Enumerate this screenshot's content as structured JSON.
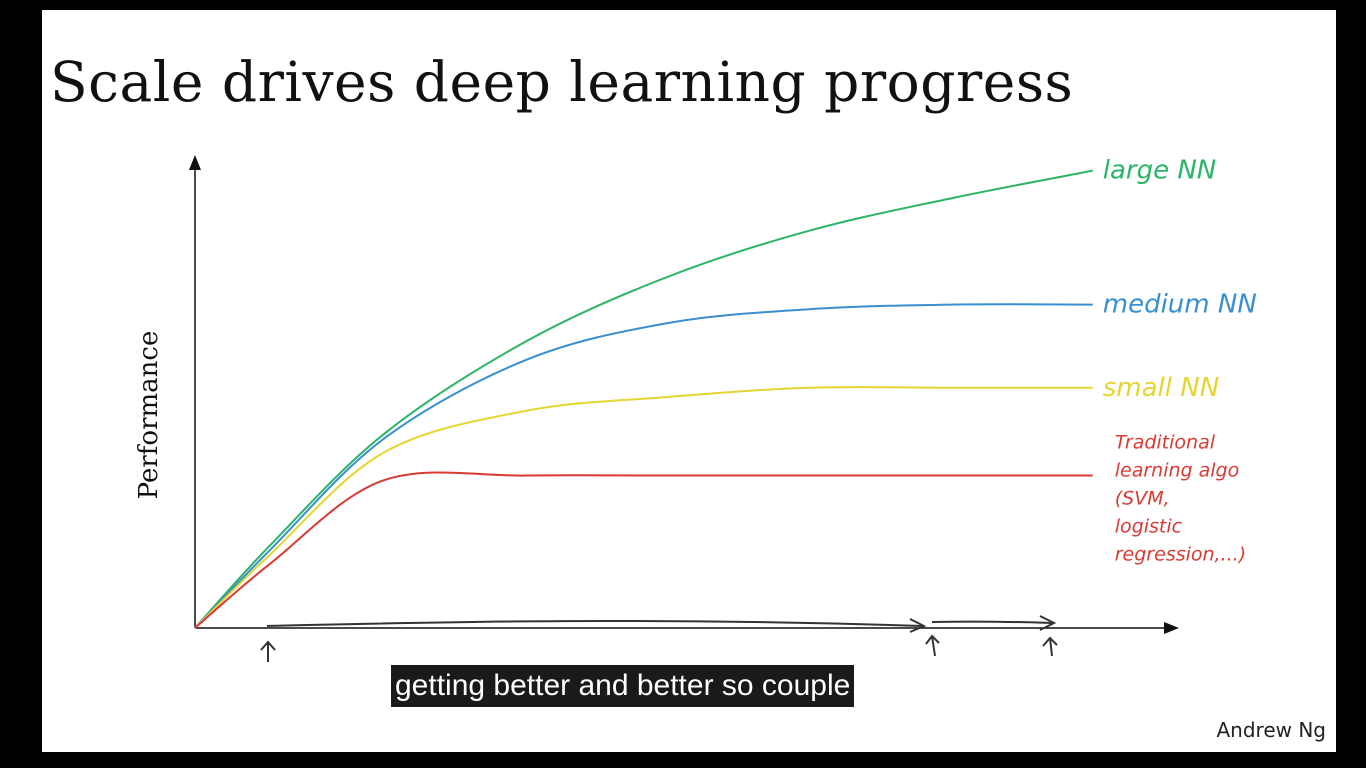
{
  "slide": {
    "title": "Scale drives deep learning progress",
    "credit": "Andrew Ng"
  },
  "subtitle": {
    "text": "getting better and better so couple"
  },
  "chart_data": {
    "type": "line",
    "title": "Scale drives deep learning progress",
    "ylabel": "Performance",
    "xlabel": "",
    "grid": false,
    "x": [
      0,
      0.08,
      0.2,
      0.35,
      0.5,
      0.65,
      0.8,
      0.95
    ],
    "series": [
      {
        "name": "large NN",
        "color": "#2bb566",
        "values": [
          0,
          0.18,
          0.42,
          0.62,
          0.76,
          0.86,
          0.93,
          0.99
        ]
      },
      {
        "name": "medium NN",
        "color": "#3a8fd0",
        "values": [
          0,
          0.17,
          0.41,
          0.58,
          0.66,
          0.69,
          0.7,
          0.7
        ]
      },
      {
        "name": "small NN",
        "color": "#e6d531",
        "values": [
          0,
          0.16,
          0.38,
          0.47,
          0.5,
          0.52,
          0.52,
          0.52
        ]
      },
      {
        "name": "Traditional learning algo (SVM, logistic regression,...)",
        "color": "#d93b33",
        "values": [
          0,
          0.14,
          0.32,
          0.33,
          0.33,
          0.33,
          0.33,
          0.33
        ]
      }
    ],
    "annotations": [
      {
        "series": "large NN",
        "label_lines": [
          "large NN"
        ]
      },
      {
        "series": "medium NN",
        "label_lines": [
          "medium NN"
        ]
      },
      {
        "series": "small NN",
        "label_lines": [
          "small NN"
        ]
      },
      {
        "series": "Traditional learning algo (SVM, logistic regression,...)",
        "label_lines": [
          "Traditional",
          "learning algo",
          "(SVM,",
          "logistic",
          "regression,...)"
        ]
      }
    ]
  },
  "colors": {
    "slide_bg": "#ffffff",
    "frame_bg": "#000000",
    "axis": "#111111",
    "subtitle_bg": "#1a1a1a",
    "subtitle_fg": "#ffffff"
  }
}
